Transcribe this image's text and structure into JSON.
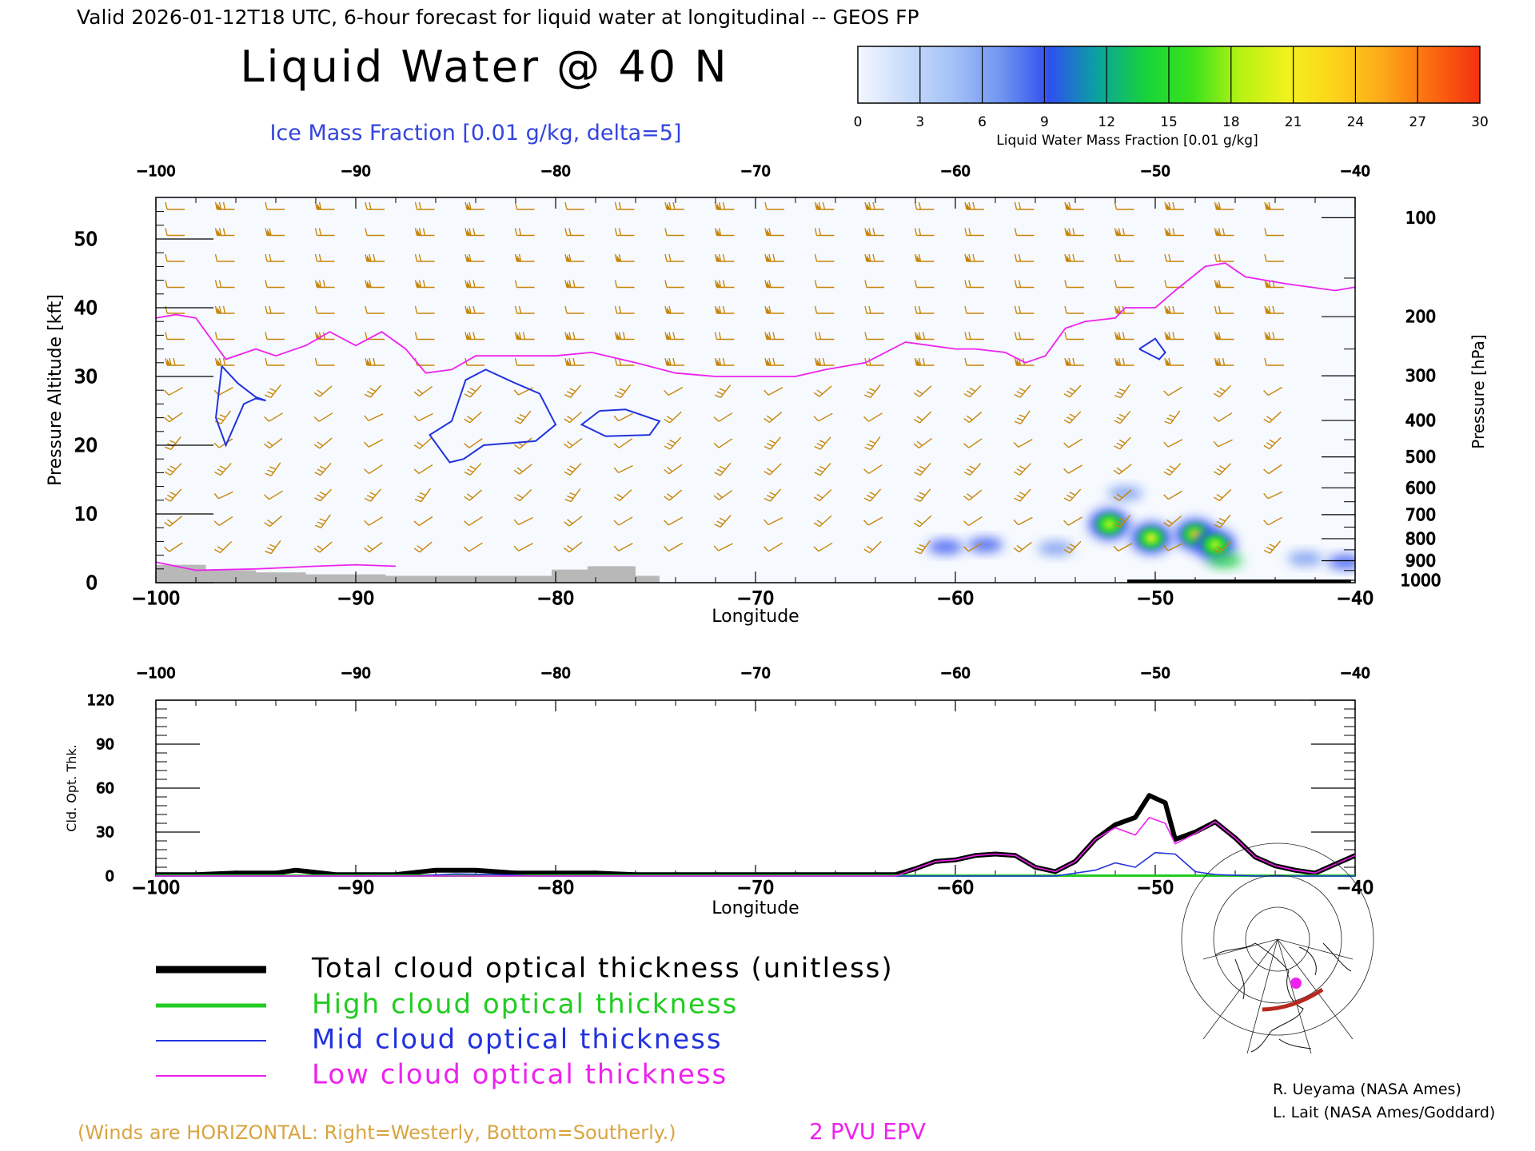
{
  "header": {
    "valid_line": "Valid 2026-01-12T18 UTC, 6-hour forecast for liquid water at longitudinal -- GEOS FP",
    "main_title": "Liquid Water @ 40 N",
    "subtitle": "Ice Mass Fraction [0.01 g/kg, delta=5]"
  },
  "colorbar": {
    "ticks": [
      "0",
      "3",
      "6",
      "9",
      "12",
      "15",
      "18",
      "21",
      "24",
      "27",
      "30"
    ],
    "label": "Liquid Water Mass Fraction [0.01 g/kg]",
    "colors": [
      "#f4f7ff",
      "#c9dcfb",
      "#a3c1f7",
      "#6f95f0",
      "#2f4ff0",
      "#0aa3a0",
      "#17d33a",
      "#3ae21c",
      "#b7f214",
      "#f2f21c",
      "#fcd21a",
      "#fca818",
      "#fb6a10",
      "#f43010"
    ]
  },
  "upper_panel": {
    "ylabel_left": "Pressure Altitude [kft]",
    "ylabel_right": "Pressure [hPa]",
    "xlabel": "Longitude",
    "x_ticks": [
      "−100",
      "−90",
      "−80",
      "−70",
      "−60",
      "−50",
      "−40"
    ],
    "y_ticks_left": [
      "0",
      "10",
      "20",
      "30",
      "40",
      "50"
    ],
    "y_ticks_right": [
      "100",
      "200",
      "300",
      "400",
      "500",
      "600",
      "700",
      "800",
      "900",
      "1000"
    ]
  },
  "lower_panel": {
    "ylabel": "Cld. Opt. Thk.",
    "xlabel": "Longitude",
    "x_ticks": [
      "−100",
      "−90",
      "−80",
      "−70",
      "−60",
      "−50",
      "−40"
    ],
    "y_ticks": [
      "0",
      "30",
      "60",
      "90",
      "120"
    ]
  },
  "legend": {
    "items": [
      {
        "label": "Total cloud optical thickness (unitless)",
        "color": "#000000"
      },
      {
        "label": "High cloud optical thickness",
        "color": "#22cc22"
      },
      {
        "label": "Mid cloud optical thickness",
        "color": "#2233dd"
      },
      {
        "label": "Low cloud optical thickness",
        "color": "#ee22ee"
      }
    ]
  },
  "footer": {
    "winds_note": "(Winds are HORIZONTAL: Right=Westerly, Bottom=Southerly.)",
    "epv_label": "2 PVU EPV",
    "credit1": "R. Ueyama (NASA Ames)",
    "credit2": "L. Lait (NASA Ames/Goddard)"
  },
  "colors": {
    "wind_barb": "#c8860a",
    "ice_contour": "#2233dd",
    "epv_line": "#ee22ee",
    "terrain": "#b8b8b8",
    "winds_note": "#d9a441",
    "subtitle": "#3344dd"
  },
  "chart_data": [
    {
      "type": "heatmap",
      "title": "Liquid Water @ 40 N",
      "xlabel": "Longitude",
      "ylabel": "Pressure Altitude [kft]",
      "xlim": [
        -100,
        -40
      ],
      "ylim": [
        0,
        56
      ],
      "value_units": "0.01 g/kg",
      "value_range": [
        0,
        30
      ],
      "liquid_water_blobs": [
        {
          "lon": -52.3,
          "alt": 8.5,
          "value": 18
        },
        {
          "lon": -50.2,
          "alt": 6.5,
          "value": 21
        },
        {
          "lon": -48.0,
          "alt": 7.0,
          "value": 22
        },
        {
          "lon": -47.0,
          "alt": 5.5,
          "value": 18
        },
        {
          "lon": -46.5,
          "alt": 3.2,
          "value": 13
        },
        {
          "lon": -51.5,
          "alt": 13.0,
          "value": 6
        },
        {
          "lon": -58.5,
          "alt": 5.5,
          "value": 9
        },
        {
          "lon": -60.5,
          "alt": 5.2,
          "value": 9
        },
        {
          "lon": -55.0,
          "alt": 5.0,
          "value": 8
        },
        {
          "lon": -42.5,
          "alt": 3.5,
          "value": 8
        },
        {
          "lon": -40.5,
          "alt": 3.0,
          "value": 9
        }
      ],
      "epv_2pvu_line": {
        "lon": [
          -100,
          -99,
          -98,
          -96.5,
          -95,
          -94,
          -92.5,
          -91.3,
          -90,
          -88.7,
          -87.5,
          -86.5,
          -85.2,
          -84,
          -82,
          -80,
          -78.2,
          -76,
          -74,
          -72,
          -70,
          -68,
          -66.5,
          -64.5,
          -62.5,
          -60,
          -59,
          -57.5,
          -56.5,
          -55.5,
          -54.5,
          -53.5,
          -52,
          -51.5,
          -50,
          -49,
          -47.5,
          -46.5,
          -45.5,
          -43.5,
          -41,
          -40
        ],
        "alt": [
          38.5,
          39,
          38.5,
          32.5,
          34,
          33,
          34.5,
          36.5,
          34.5,
          36.5,
          34,
          30.5,
          31,
          33,
          33,
          33,
          33.5,
          32,
          30.5,
          30,
          30,
          30,
          31,
          32,
          35,
          34,
          34,
          33.5,
          32,
          33,
          37,
          38,
          38.5,
          40,
          40,
          42.5,
          46,
          46.5,
          44.5,
          43.5,
          42.5,
          43
        ]
      },
      "epv_lower_line": {
        "lon": [
          -100,
          -98,
          -95,
          -92,
          -90,
          -88
        ],
        "alt": [
          3,
          1.8,
          2,
          2.4,
          2.6,
          2.4
        ]
      },
      "ice_contours": [
        {
          "lon": [
            -96.7,
            -95.9,
            -95.0,
            -94.5,
            -95.0,
            -95.6,
            -96.5,
            -97.0,
            -96.7
          ],
          "alt": [
            31.5,
            29,
            27,
            26.5,
            26.8,
            26,
            20,
            24,
            31.5
          ]
        },
        {
          "lon": [
            -85.2,
            -84.5,
            -83.5,
            -82,
            -80.8,
            -80.0,
            -81,
            -83.6,
            -84.6,
            -85.3,
            -86.3,
            -85.2
          ],
          "alt": [
            23.5,
            29.5,
            31,
            29,
            27.5,
            23,
            20.6,
            20,
            18,
            17.5,
            21.5,
            23.5
          ]
        },
        {
          "lon": [
            -77.8,
            -76.5,
            -74.8,
            -75.3,
            -77.5,
            -78.7,
            -77.8
          ],
          "alt": [
            25,
            25.2,
            23.5,
            21.5,
            21.3,
            23,
            25
          ]
        },
        {
          "lon": [
            -50.8,
            -50.0,
            -49.5,
            -49.8,
            -50.8
          ],
          "alt": [
            34,
            35.5,
            33.5,
            32.5,
            34
          ]
        }
      ],
      "terrain": {
        "lon": [
          -100,
          -98.5,
          -97.5,
          -95,
          -92.5,
          -90,
          -88.5,
          -86.5,
          -82,
          -80.2,
          -78.4,
          -76,
          -74.8
        ],
        "alt": [
          2.6,
          2.6,
          1.8,
          1.5,
          1.2,
          1.2,
          1.0,
          1.0,
          1.0,
          1.9,
          2.4,
          1.0,
          0
        ]
      }
    },
    {
      "type": "line",
      "xlabel": "Longitude",
      "ylabel": "Cld. Opt. Thk.",
      "xlim": [
        -100,
        -40
      ],
      "ylim": [
        0,
        120
      ],
      "series": [
        {
          "name": "Total cloud optical thickness (unitless)",
          "x": [
            -100,
            -98,
            -96,
            -94,
            -93,
            -91,
            -88,
            -86,
            -84,
            -82,
            -80,
            -78,
            -76,
            -74,
            -72,
            -70,
            -68,
            -66,
            -63,
            -62,
            -61,
            -60,
            -59,
            -58,
            -57,
            -56,
            -55,
            -54,
            -53,
            -52,
            -51,
            -50.3,
            -49.5,
            -49,
            -48,
            -47,
            -46,
            -45,
            -44,
            -43,
            -42,
            -41,
            -40
          ],
          "y": [
            1,
            1,
            2,
            2,
            4,
            1,
            1,
            4,
            4,
            2,
            2,
            2,
            1,
            1,
            1,
            1,
            1,
            1,
            1,
            5,
            10,
            11,
            14,
            15,
            14,
            6,
            3,
            10,
            25,
            35,
            40,
            55,
            50,
            25,
            30,
            37,
            26,
            13,
            7,
            4,
            2,
            8,
            14
          ]
        },
        {
          "name": "High cloud optical thickness",
          "x": [
            -100,
            -40
          ],
          "y": [
            0.3,
            0.3
          ]
        },
        {
          "name": "Mid cloud optical thickness",
          "x": [
            -100,
            -87,
            -85,
            -83,
            -81,
            -62,
            -55,
            -53,
            -52,
            -51,
            -50,
            -49,
            -48,
            -47,
            -45,
            -40
          ],
          "y": [
            0,
            0,
            1.5,
            1,
            0,
            0,
            0,
            4,
            9,
            6,
            16,
            15,
            3,
            1,
            0,
            0
          ]
        },
        {
          "name": "Low cloud optical thickness",
          "x": [
            -100,
            -63,
            -62,
            -61,
            -60,
            -59,
            -58,
            -57,
            -56,
            -55,
            -54,
            -53,
            -52,
            -51,
            -50.3,
            -49.5,
            -49,
            -48,
            -47,
            -46,
            -45,
            -44,
            -43,
            -42,
            -41,
            -40
          ],
          "y": [
            0,
            0,
            5,
            10,
            11,
            14,
            15,
            14,
            6,
            3,
            10,
            25,
            33,
            28,
            40,
            36,
            22,
            29,
            37,
            26,
            13,
            7,
            4,
            2,
            8,
            14
          ]
        }
      ]
    }
  ]
}
